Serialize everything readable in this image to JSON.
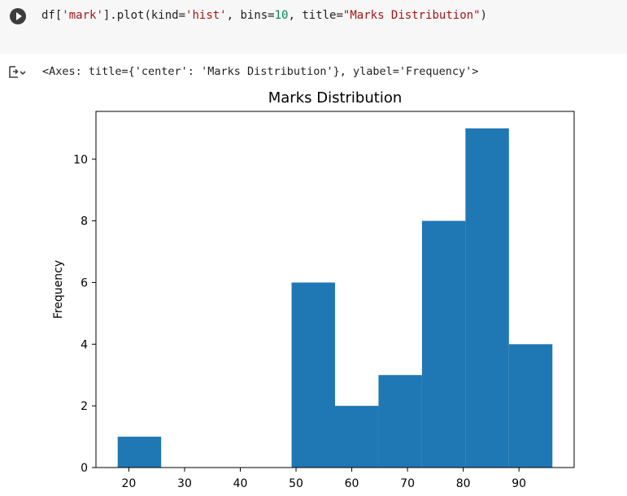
{
  "code_cell": {
    "tokens": [
      {
        "t": "df[",
        "c": "plain"
      },
      {
        "t": "'mark'",
        "c": "str"
      },
      {
        "t": "].plot(kind=",
        "c": "plain"
      },
      {
        "t": "'hist'",
        "c": "str"
      },
      {
        "t": ", bins=",
        "c": "plain"
      },
      {
        "t": "10",
        "c": "num"
      },
      {
        "t": ", title=",
        "c": "plain"
      },
      {
        "t": "\"Marks Distribution\"",
        "c": "str"
      },
      {
        "t": ")",
        "c": "plain"
      }
    ]
  },
  "output": {
    "text": "<Axes: title={'center': 'Marks Distribution'}, ylabel='Frequency'>"
  },
  "icons": {
    "run": "play-circle-icon",
    "output": "output-toggle-icon"
  },
  "chart_data": {
    "type": "bar",
    "title": "Marks Distribution",
    "xlabel": "",
    "ylabel": "Frequency",
    "xlim": [
      14.1,
      99.9
    ],
    "ylim": [
      0,
      11.55
    ],
    "bins": [
      {
        "x0": 18,
        "x1": 25.8,
        "value": 1
      },
      {
        "x0": 25.8,
        "x1": 33.6,
        "value": 0
      },
      {
        "x0": 33.6,
        "x1": 41.4,
        "value": 0
      },
      {
        "x0": 41.4,
        "x1": 49.2,
        "value": 0
      },
      {
        "x0": 49.2,
        "x1": 57,
        "value": 6
      },
      {
        "x0": 57,
        "x1": 64.8,
        "value": 2
      },
      {
        "x0": 64.8,
        "x1": 72.6,
        "value": 3
      },
      {
        "x0": 72.6,
        "x1": 80.4,
        "value": 8
      },
      {
        "x0": 80.4,
        "x1": 88.2,
        "value": 11
      },
      {
        "x0": 88.2,
        "x1": 96,
        "value": 4
      }
    ],
    "x_ticks": [
      20,
      30,
      40,
      50,
      60,
      70,
      80,
      90
    ],
    "y_ticks": [
      0,
      2,
      4,
      6,
      8,
      10
    ],
    "bar_color": "#1f77b4",
    "grid": false
  }
}
